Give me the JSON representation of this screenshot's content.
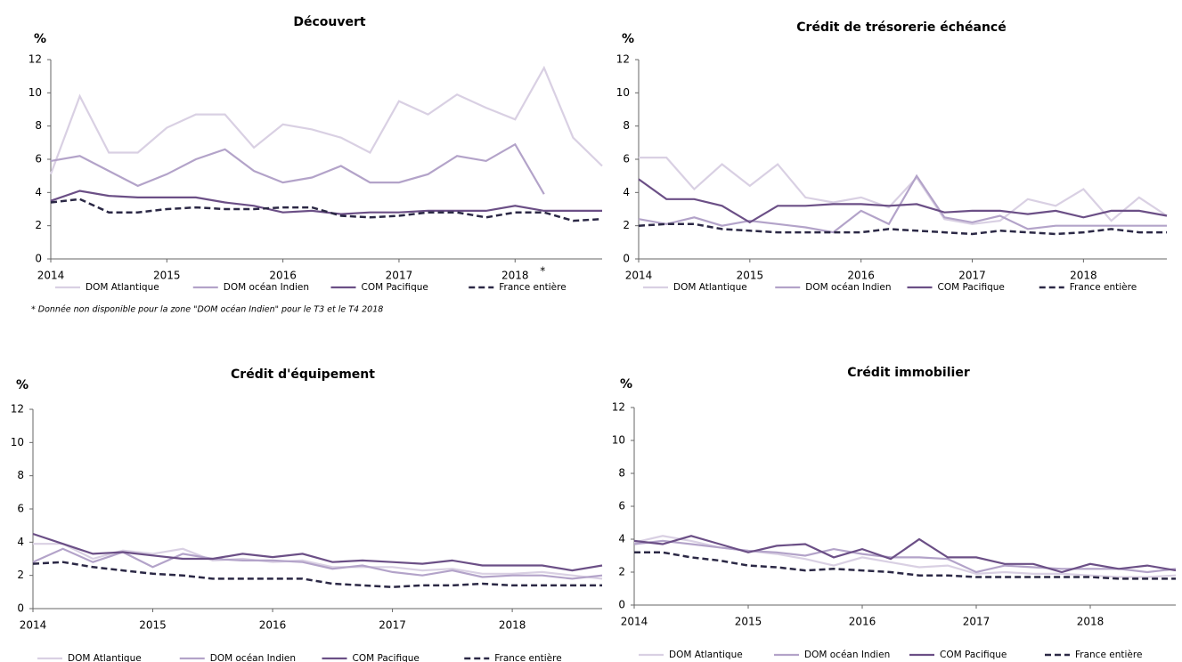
{
  "chart_data": [
    {
      "type": "line",
      "title": "Découvert",
      "y_label": "%",
      "categories": [
        "2014",
        null,
        null,
        null,
        "2015",
        null,
        null,
        null,
        "2016",
        null,
        null,
        null,
        "2017",
        null,
        null,
        null,
        "2018",
        null,
        null,
        null
      ],
      "ylim": [
        0,
        12
      ],
      "yticks": [
        0,
        2,
        4,
        6,
        8,
        10,
        12
      ],
      "grid": false,
      "legend": "bottom",
      "annotations": [
        "*"
      ],
      "footnote": "* Donnée non disponible pour la zone \"DOM océan Indien\" pour le T3 et le T4 2018",
      "series": [
        {
          "name": "DOM Atlantique",
          "color": "#d9d0e3",
          "dashed": false,
          "values": [
            5.1,
            9.8,
            6.4,
            6.4,
            7.9,
            8.7,
            8.7,
            6.7,
            8.1,
            7.8,
            7.3,
            6.4,
            9.5,
            8.7,
            9.9,
            9.1,
            8.4,
            11.5,
            7.3,
            5.6
          ]
        },
        {
          "name": "DOM océan Indien",
          "color": "#b3a3c9",
          "dashed": false,
          "values": [
            5.9,
            6.2,
            5.3,
            4.4,
            5.1,
            6.0,
            6.6,
            5.3,
            4.6,
            4.9,
            5.6,
            4.6,
            4.6,
            5.1,
            6.2,
            5.9,
            6.9,
            3.9,
            null,
            null
          ]
        },
        {
          "name": "COM Pacifique",
          "color": "#6b4f86",
          "dashed": false,
          "values": [
            3.5,
            4.1,
            3.8,
            3.7,
            3.7,
            3.7,
            3.4,
            3.2,
            2.8,
            2.9,
            2.7,
            2.8,
            2.8,
            2.9,
            2.9,
            2.9,
            3.2,
            2.9,
            2.9,
            2.9
          ]
        },
        {
          "name": "France entière",
          "color": "#2b2845",
          "dashed": true,
          "values": [
            3.4,
            3.6,
            2.8,
            2.8,
            3.0,
            3.1,
            3.0,
            3.0,
            3.1,
            3.1,
            2.6,
            2.5,
            2.6,
            2.8,
            2.8,
            2.5,
            2.8,
            2.8,
            2.3,
            2.4
          ]
        }
      ]
    },
    {
      "type": "line",
      "title": "Crédit de trésorerie échéancé",
      "y_label": "%",
      "categories": [
        "2014",
        null,
        null,
        null,
        "2015",
        null,
        null,
        null,
        "2016",
        null,
        null,
        null,
        "2017",
        null,
        null,
        null,
        "2018",
        null,
        null,
        null
      ],
      "ylim": [
        0,
        12
      ],
      "yticks": [
        0,
        2,
        4,
        6,
        8,
        10,
        12
      ],
      "grid": false,
      "legend": "bottom",
      "series": [
        {
          "name": "DOM Atlantique",
          "color": "#d9d0e3",
          "dashed": false,
          "values": [
            6.1,
            6.1,
            4.2,
            5.7,
            4.4,
            5.7,
            3.7,
            3.4,
            3.7,
            3.1,
            4.9,
            2.4,
            2.1,
            2.3,
            3.6,
            3.2,
            4.2,
            2.3,
            3.7,
            2.6
          ]
        },
        {
          "name": "DOM océan Indien",
          "color": "#b3a3c9",
          "dashed": false,
          "values": [
            2.4,
            2.1,
            2.5,
            2.0,
            2.3,
            2.1,
            1.9,
            1.6,
            2.9,
            2.1,
            5.0,
            2.5,
            2.2,
            2.6,
            1.8,
            2.0,
            2.0,
            2.0,
            2.0,
            2.0
          ]
        },
        {
          "name": "COM Pacifique",
          "color": "#6b4f86",
          "dashed": false,
          "values": [
            4.8,
            3.6,
            3.6,
            3.2,
            2.2,
            3.2,
            3.2,
            3.3,
            3.3,
            3.2,
            3.3,
            2.8,
            2.9,
            2.9,
            2.7,
            2.9,
            2.5,
            2.9,
            2.9,
            2.6
          ]
        },
        {
          "name": "France entière",
          "color": "#2b2845",
          "dashed": true,
          "values": [
            2.0,
            2.1,
            2.1,
            1.8,
            1.7,
            1.6,
            1.6,
            1.6,
            1.6,
            1.8,
            1.7,
            1.6,
            1.5,
            1.7,
            1.6,
            1.5,
            1.6,
            1.8,
            1.6,
            1.6
          ]
        }
      ]
    },
    {
      "type": "line",
      "title": "Crédit d'équipement",
      "y_label": "%",
      "categories": [
        "2014",
        null,
        null,
        null,
        "2015",
        null,
        null,
        null,
        "2016",
        null,
        null,
        null,
        "2017",
        null,
        null,
        null,
        "2018",
        null,
        null,
        null
      ],
      "ylim": [
        0,
        12
      ],
      "yticks": [
        0,
        2,
        4,
        6,
        8,
        10,
        12
      ],
      "grid": false,
      "legend": "bottom",
      "series": [
        {
          "name": "DOM Atlantique",
          "color": "#d9d0e3",
          "dashed": false,
          "values": [
            3.9,
            3.9,
            3.0,
            3.5,
            3.3,
            3.6,
            2.9,
            3.0,
            2.8,
            2.9,
            2.5,
            2.5,
            2.5,
            2.3,
            2.4,
            2.1,
            2.1,
            2.2,
            2.0,
            1.8
          ]
        },
        {
          "name": "DOM océan Indien",
          "color": "#b3a3c9",
          "dashed": false,
          "values": [
            2.8,
            3.6,
            2.8,
            3.4,
            2.5,
            3.3,
            3.0,
            2.9,
            2.9,
            2.8,
            2.4,
            2.6,
            2.2,
            2.0,
            2.3,
            1.9,
            2.0,
            2.0,
            1.8,
            2.0
          ]
        },
        {
          "name": "COM Pacifique",
          "color": "#6b4f86",
          "dashed": false,
          "values": [
            4.5,
            3.9,
            3.3,
            3.4,
            3.2,
            3.0,
            3.0,
            3.3,
            3.1,
            3.3,
            2.8,
            2.9,
            2.8,
            2.7,
            2.9,
            2.6,
            2.6,
            2.6,
            2.3,
            2.6
          ]
        },
        {
          "name": "France entière",
          "color": "#2b2845",
          "dashed": true,
          "values": [
            2.7,
            2.8,
            2.5,
            2.3,
            2.1,
            2.0,
            1.8,
            1.8,
            1.8,
            1.8,
            1.5,
            1.4,
            1.3,
            1.4,
            1.4,
            1.5,
            1.4,
            1.4,
            1.4,
            1.4
          ]
        }
      ]
    },
    {
      "type": "line",
      "title": "Crédit immobilier",
      "y_label": "%",
      "categories": [
        "2014",
        null,
        null,
        null,
        "2015",
        null,
        null,
        null,
        "2016",
        null,
        null,
        null,
        "2017",
        null,
        null,
        null,
        "2018",
        null,
        null,
        null
      ],
      "ylim": [
        0,
        12
      ],
      "yticks": [
        0,
        2,
        4,
        6,
        8,
        10,
        12
      ],
      "grid": false,
      "legend": "bottom",
      "series": [
        {
          "name": "DOM Atlantique",
          "color": "#d9d0e3",
          "dashed": false,
          "values": [
            3.8,
            4.2,
            3.9,
            3.5,
            3.3,
            3.1,
            2.8,
            2.4,
            2.9,
            2.6,
            2.3,
            2.4,
            1.9,
            2.0,
            1.9,
            1.9,
            1.8,
            1.7,
            1.7,
            1.8
          ]
        },
        {
          "name": "DOM océan Indien",
          "color": "#b3a3c9",
          "dashed": false,
          "values": [
            3.7,
            3.9,
            3.7,
            3.5,
            3.3,
            3.2,
            3.0,
            3.4,
            3.1,
            2.9,
            2.9,
            2.8,
            2.0,
            2.4,
            2.3,
            2.2,
            2.2,
            2.2,
            2.0,
            2.2
          ]
        },
        {
          "name": "COM Pacifique",
          "color": "#6b4f86",
          "dashed": false,
          "values": [
            3.9,
            3.7,
            4.2,
            3.7,
            3.2,
            3.6,
            3.7,
            2.9,
            3.4,
            2.8,
            4.0,
            2.9,
            2.9,
            2.5,
            2.5,
            2.0,
            2.5,
            2.2,
            2.4,
            2.1
          ]
        },
        {
          "name": "France entière",
          "color": "#2b2845",
          "dashed": true,
          "values": [
            3.2,
            3.2,
            2.9,
            2.7,
            2.4,
            2.3,
            2.1,
            2.2,
            2.1,
            2.0,
            1.8,
            1.8,
            1.7,
            1.7,
            1.7,
            1.7,
            1.7,
            1.6,
            1.6,
            1.6
          ]
        }
      ]
    }
  ]
}
